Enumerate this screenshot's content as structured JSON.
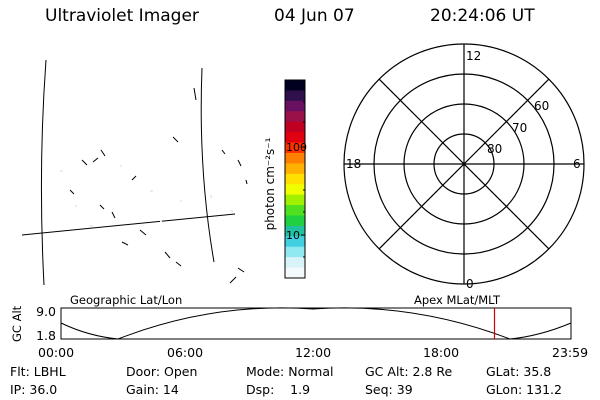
{
  "header": {
    "title": "Ultraviolet Imager",
    "date": "04 Jun 07",
    "time": "20:24:06 UT"
  },
  "colorbar": {
    "unit_label": "photon cm⁻²s⁻¹",
    "ticks": [
      "100",
      "10"
    ],
    "colors": [
      "#000020",
      "#30104a",
      "#6a1060",
      "#9a1048",
      "#c00020",
      "#e00010",
      "#ff3000",
      "#ff8000",
      "#ffb000",
      "#ffe000",
      "#f0ff00",
      "#a0f000",
      "#50e020",
      "#20d040",
      "#20c0a0",
      "#40d0e0",
      "#90e8f0",
      "#d8f4f8",
      "#f4fafc"
    ]
  },
  "polar": {
    "labels": {
      "top": "12",
      "bottom": "0",
      "left": "18",
      "right": "6"
    },
    "lat_labels": [
      "60",
      "70",
      "80"
    ]
  },
  "geo_label": "Geographic Lat/Lon",
  "apex_label": "Apex MLat/MLT",
  "orbit_plot": {
    "ylabel": "GC Alt",
    "y_ticks": [
      "9.0",
      "1.8"
    ],
    "x_ticks": [
      "00:00",
      "06:00",
      "12:00",
      "18:00",
      "23:59"
    ],
    "current_time_hours": 20.4
  },
  "info": {
    "flt": "Flt: LBHL",
    "door": "Door: Open",
    "mode": "Mode: Normal",
    "gc_alt": "GC Alt: 2.8 Re",
    "glat": "GLat: 35.8",
    "ip": "IP: 36.0",
    "gain": "Gain: 14",
    "dsp": "Dsp:    1.9",
    "seq": "Seq: 39",
    "glon": "GLon: 131.2"
  }
}
